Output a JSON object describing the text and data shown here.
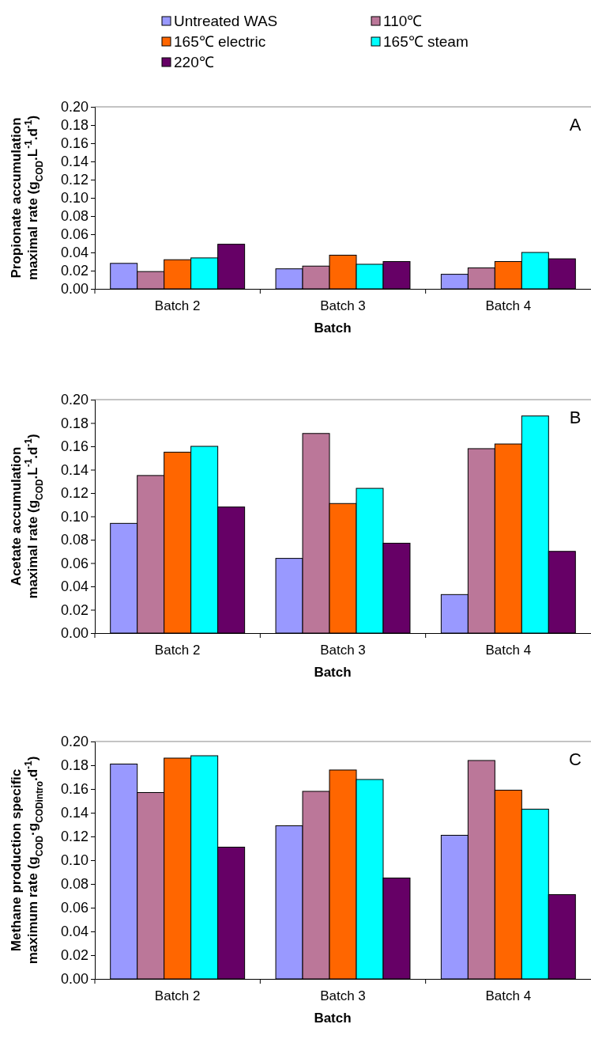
{
  "chart_data": [
    {
      "type": "bar",
      "categories": [
        "Batch 2",
        "Batch 3",
        "Batch 4"
      ],
      "xlabel": "Batch",
      "ylabel": "Propionate accumulation maximal rate (g$_{COD}$.L$^{-1}$.d$^{-1}$)",
      "annotations": [
        "A"
      ],
      "legend": "top",
      "ylim": [
        0,
        0.2
      ],
      "yticks": [
        {
          "value": 0,
          "label": "0.00"
        },
        {
          "value": 0.02,
          "label": "0.02"
        },
        {
          "value": 0.04,
          "label": "0.04"
        },
        {
          "value": 0.06,
          "label": "0.06"
        },
        {
          "value": 0.08,
          "label": "0.08"
        },
        {
          "value": 0.1,
          "label": "0.10"
        },
        {
          "value": 0.12,
          "label": "0.12"
        },
        {
          "value": 0.14,
          "label": "0.14"
        },
        {
          "value": 0.16,
          "label": "0.16"
        },
        {
          "value": 0.18,
          "label": "0.18"
        },
        {
          "value": 0.2,
          "label": "0.20"
        }
      ],
      "series": [
        {
          "name": "Untreated WAS",
          "color": "#9999ff",
          "values": [
            0.028,
            0.022,
            0.016
          ]
        },
        {
          "name": "110℃",
          "color": "#bb7799",
          "values": [
            0.019,
            0.025,
            0.023
          ]
        },
        {
          "name": "165℃ electric",
          "color": "#ff6600",
          "values": [
            0.032,
            0.037,
            0.03
          ]
        },
        {
          "name": "165℃ steam",
          "color": "#00ffff",
          "values": [
            0.034,
            0.027,
            0.04
          ]
        },
        {
          "name": "220℃",
          "color": "#660066",
          "values": [
            0.049,
            0.03,
            0.033
          ]
        }
      ]
    },
    {
      "type": "bar",
      "categories": [
        "Batch 2",
        "Batch 3",
        "Batch 4"
      ],
      "xlabel": "Batch",
      "ylabel": "Acetate accumulation maximal rate (g$_{COD}$.L$^{-1}$.d$^{-1}$)",
      "annotations": [
        "B"
      ],
      "ylim": [
        0,
        0.2
      ],
      "yticks": [
        {
          "value": 0,
          "label": "0.00"
        },
        {
          "value": 0.02,
          "label": "0.02"
        },
        {
          "value": 0.04,
          "label": "0.04"
        },
        {
          "value": 0.06,
          "label": "0.06"
        },
        {
          "value": 0.08,
          "label": "0.08"
        },
        {
          "value": 0.1,
          "label": "0.10"
        },
        {
          "value": 0.12,
          "label": "0.12"
        },
        {
          "value": 0.14,
          "label": "0.14"
        },
        {
          "value": 0.16,
          "label": "0.16"
        },
        {
          "value": 0.18,
          "label": "0.18"
        },
        {
          "value": 0.2,
          "label": "0.20"
        }
      ],
      "series": [
        {
          "color": "#9999ff",
          "values": [
            0.094,
            0.064,
            0.033
          ]
        },
        {
          "color": "#bb7799",
          "values": [
            0.135,
            0.171,
            0.158
          ]
        },
        {
          "color": "#ff6600",
          "values": [
            0.155,
            0.111,
            0.162
          ]
        },
        {
          "color": "#00ffff",
          "values": [
            0.16,
            0.124,
            0.186
          ]
        },
        {
          "color": "#660066",
          "values": [
            0.108,
            0.077,
            0.07
          ]
        }
      ]
    },
    {
      "type": "bar",
      "categories": [
        "Batch 2",
        "Batch 3",
        "Batch 4"
      ],
      "xlabel": "Batch",
      "ylabel": "Methane production specific maximum rate (g$_{COD}$·g$_{CODintro}$.d$^{-1}$)",
      "annotations": [
        "C"
      ],
      "ylim": [
        0,
        0.2
      ],
      "yticks": [
        {
          "value": 0,
          "label": "0.00"
        },
        {
          "value": 0.02,
          "label": "0.02"
        },
        {
          "value": 0.04,
          "label": "0.04"
        },
        {
          "value": 0.06,
          "label": "0.06"
        },
        {
          "value": 0.08,
          "label": "0.08"
        },
        {
          "value": 0.1,
          "label": "0.10"
        },
        {
          "value": 0.12,
          "label": "0.12"
        },
        {
          "value": 0.14,
          "label": "0.14"
        },
        {
          "value": 0.16,
          "label": "0.16"
        },
        {
          "value": 0.18,
          "label": "0.18"
        },
        {
          "value": 0.2,
          "label": "0.20"
        }
      ],
      "series": [
        {
          "color": "#9999ff",
          "values": [
            0.181,
            0.129,
            0.121
          ]
        },
        {
          "color": "#bb7799",
          "values": [
            0.157,
            0.158,
            0.184
          ]
        },
        {
          "color": "#ff6600",
          "values": [
            0.186,
            0.176,
            0.159
          ]
        },
        {
          "color": "#00ffff",
          "values": [
            0.188,
            0.168,
            0.143
          ]
        },
        {
          "color": "#660066",
          "values": [
            0.111,
            0.085,
            0.071
          ]
        }
      ]
    }
  ]
}
